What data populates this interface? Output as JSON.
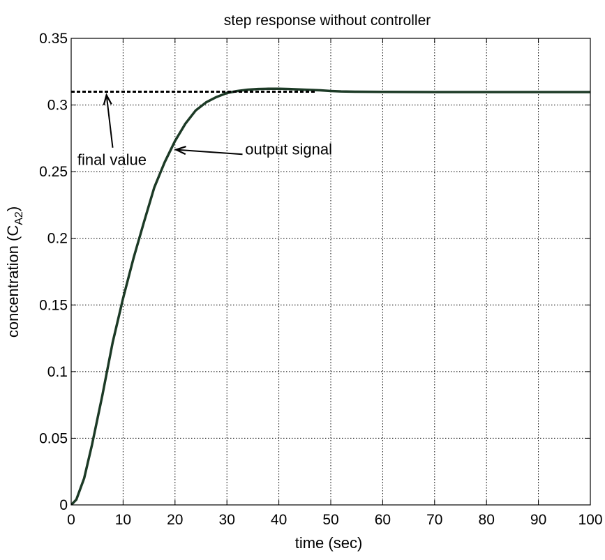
{
  "chart_data": {
    "type": "line",
    "title": "step response without controller",
    "xlabel": "time (sec)",
    "ylabel": {
      "main": "concentration (C",
      "subscript": "A2",
      "close": ")"
    },
    "xlim": [
      0,
      100
    ],
    "ylim": [
      0,
      0.35
    ],
    "xticks": [
      0,
      10,
      20,
      30,
      40,
      50,
      60,
      70,
      80,
      90,
      100
    ],
    "yticks": [
      0,
      0.05,
      0.1,
      0.15,
      0.2,
      0.25,
      0.3,
      0.35
    ],
    "xtick_labels": [
      "0",
      "10",
      "20",
      "30",
      "40",
      "50",
      "60",
      "70",
      "80",
      "90",
      "100"
    ],
    "ytick_labels": [
      "0",
      "0.05",
      "0.1",
      "0.15",
      "0.2",
      "0.25",
      "0.3",
      "0.35"
    ],
    "grid": true,
    "series": [
      {
        "style": "solid",
        "color": "#1c3a26",
        "x": [
          0,
          1,
          2.5,
          4,
          6,
          8,
          10,
          12,
          14,
          16,
          18,
          20,
          22,
          24,
          26,
          28,
          30,
          32,
          34,
          36,
          38,
          40,
          42,
          45,
          48,
          50,
          52,
          55,
          60,
          70,
          80,
          90,
          100
        ],
        "y": [
          0,
          0.004,
          0.02,
          0.045,
          0.082,
          0.122,
          0.155,
          0.185,
          0.212,
          0.238,
          0.257,
          0.273,
          0.286,
          0.296,
          0.302,
          0.306,
          0.309,
          0.3105,
          0.3115,
          0.312,
          0.3122,
          0.3122,
          0.312,
          0.3115,
          0.311,
          0.3105,
          0.3102,
          0.31,
          0.3098,
          0.3097,
          0.3097,
          0.3097,
          0.3097
        ]
      },
      {
        "style": "dashed",
        "color": "#000000",
        "x": [
          0,
          47
        ],
        "y": [
          0.31,
          0.31
        ]
      }
    ],
    "annotations": [
      {
        "text": "final value",
        "text_x": 1.2,
        "text_y": 0.255,
        "arrow_from": [
          8,
          0.268
        ],
        "arrow_to": [
          6.8,
          0.3075
        ]
      },
      {
        "text": "output signal",
        "text_x": 33.5,
        "text_y": 0.263,
        "arrow_from": [
          33,
          0.263
        ],
        "arrow_to": [
          20.2,
          0.2665
        ]
      }
    ]
  }
}
